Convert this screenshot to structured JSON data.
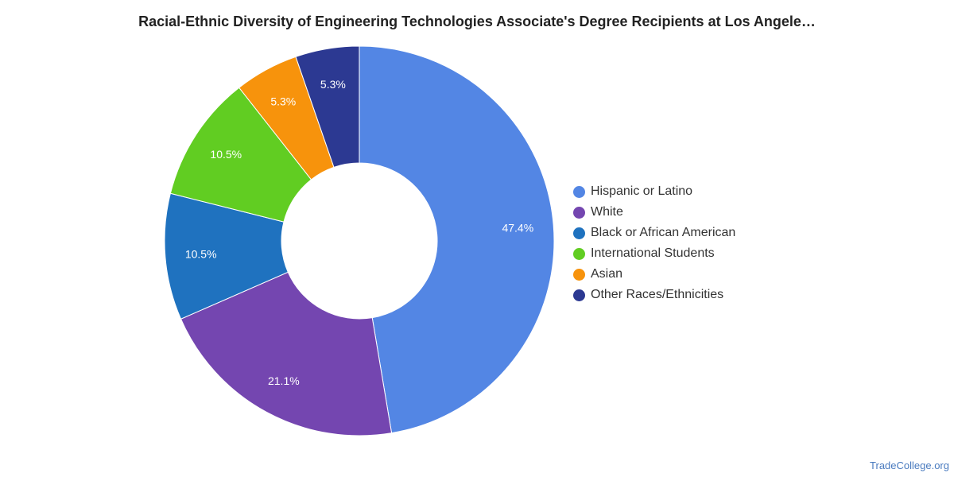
{
  "chart_data": {
    "type": "pie",
    "title": "Racial-Ethnic Diversity of Engineering Technologies Associate's Degree Recipients at Los Angele…",
    "categories": [
      "Hispanic or Latino",
      "White",
      "Black or African American",
      "International Students",
      "Asian",
      "Other Races/Ethnicities"
    ],
    "values": [
      47.4,
      21.1,
      10.5,
      10.5,
      5.3,
      5.3
    ],
    "labels": [
      "47.4%",
      "21.1%",
      "10.5%",
      "10.5%",
      "5.3%",
      "5.3%"
    ],
    "colors": [
      "#5386e4",
      "#7446b0",
      "#1f72bf",
      "#61cd22",
      "#f7930c",
      "#2c3992"
    ],
    "donut": true,
    "legend_position": "right"
  },
  "source": "TradeCollege.org"
}
